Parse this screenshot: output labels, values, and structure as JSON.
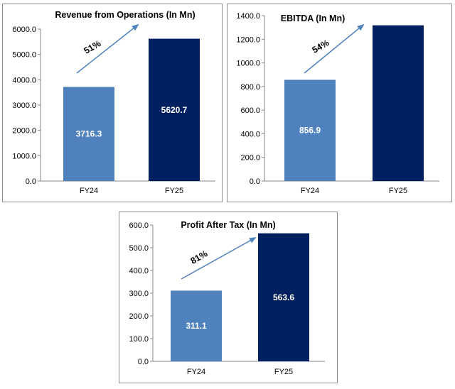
{
  "chart_data": [
    {
      "type": "bar",
      "title": "Revenue from Operations (In Mn)",
      "categories": [
        "FY24",
        "FY25"
      ],
      "values": [
        3716.3,
        5620.7
      ],
      "data_labels": [
        "3716.3",
        "5620.7"
      ],
      "ylim": [
        0,
        6000
      ],
      "yticks": [
        "0.0",
        "1000.0",
        "2000.0",
        "3000.0",
        "4000.0",
        "5000.0",
        "6000.0"
      ],
      "growth_label": "51%",
      "colors": [
        "#4f81bd",
        "#002060"
      ],
      "arrow_color": "#4f81bd",
      "grid": false,
      "legend": "none"
    },
    {
      "type": "bar",
      "title": "EBITDA (In Mn)",
      "categories": [
        "FY24",
        "FY25"
      ],
      "values": [
        856.9,
        1318
      ],
      "data_labels": [
        "856.9",
        ""
      ],
      "ylim": [
        0,
        1400
      ],
      "yticks": [
        "0.0",
        "200.0",
        "400.0",
        "600.0",
        "800.0",
        "1000.0",
        "1200.0",
        "1400.0"
      ],
      "growth_label": "54%",
      "colors": [
        "#4f81bd",
        "#002060"
      ],
      "arrow_color": "#4f81bd",
      "grid": false,
      "legend": "none"
    },
    {
      "type": "bar",
      "title": "Profit After Tax (In Mn)",
      "categories": [
        "FY24",
        "FY25"
      ],
      "values": [
        311.1,
        563.6
      ],
      "data_labels": [
        "311.1",
        "563.6"
      ],
      "ylim": [
        0,
        600
      ],
      "yticks": [
        "0.0",
        "100.0",
        "200.0",
        "300.0",
        "400.0",
        "500.0",
        "600.0"
      ],
      "growth_label": "81%",
      "colors": [
        "#4f81bd",
        "#002060"
      ],
      "arrow_color": "#4f81bd",
      "grid": false,
      "legend": "none"
    }
  ]
}
